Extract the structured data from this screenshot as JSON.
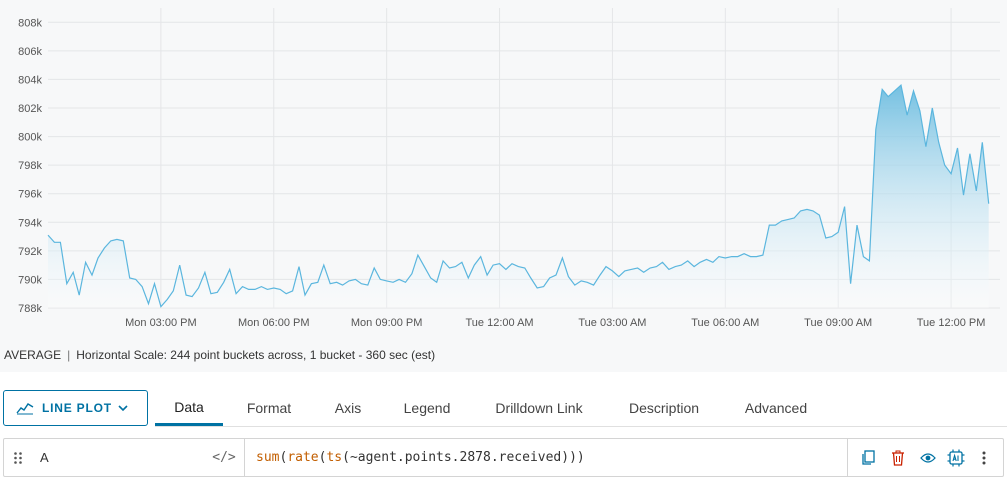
{
  "chart_data": {
    "type": "area",
    "x_labels": [
      "Mon 03:00 PM",
      "Mon 06:00 PM",
      "Mon 09:00 PM",
      "Tue 12:00 AM",
      "Tue 03:00 AM",
      "Tue 06:00 AM",
      "Tue 09:00 AM",
      "Tue 12:00 PM"
    ],
    "y_ticks": [
      "788k",
      "790k",
      "792k",
      "794k",
      "796k",
      "798k",
      "800k",
      "802k",
      "804k",
      "806k",
      "808k"
    ],
    "ylim": [
      788000,
      809000
    ],
    "x_range_hours": [
      0,
      25.3
    ],
    "grid": true,
    "line_color": "#5bb6de",
    "fill_color_top": "#6dbde0",
    "fill_color_bottom": "#ffffff",
    "series": [
      {
        "values": [
          [
            0.0,
            793100
          ],
          [
            0.17,
            792600
          ],
          [
            0.33,
            792600
          ],
          [
            0.5,
            789700
          ],
          [
            0.67,
            790500
          ],
          [
            0.83,
            788900
          ],
          [
            1.0,
            791200
          ],
          [
            1.17,
            790300
          ],
          [
            1.33,
            791500
          ],
          [
            1.5,
            792200
          ],
          [
            1.67,
            792700
          ],
          [
            1.83,
            792800
          ],
          [
            2.0,
            792700
          ],
          [
            2.17,
            790100
          ],
          [
            2.33,
            790000
          ],
          [
            2.5,
            789500
          ],
          [
            2.67,
            788300
          ],
          [
            2.83,
            789700
          ],
          [
            3.0,
            788100
          ],
          [
            3.17,
            788600
          ],
          [
            3.33,
            789200
          ],
          [
            3.5,
            791000
          ],
          [
            3.67,
            788900
          ],
          [
            3.83,
            788800
          ],
          [
            4.0,
            789400
          ],
          [
            4.17,
            790500
          ],
          [
            4.33,
            789000
          ],
          [
            4.5,
            789100
          ],
          [
            4.67,
            789800
          ],
          [
            4.83,
            790700
          ],
          [
            5.0,
            789000
          ],
          [
            5.17,
            789500
          ],
          [
            5.33,
            789300
          ],
          [
            5.5,
            789300
          ],
          [
            5.67,
            789500
          ],
          [
            5.83,
            789300
          ],
          [
            6.0,
            789400
          ],
          [
            6.17,
            789300
          ],
          [
            6.33,
            789000
          ],
          [
            6.5,
            789200
          ],
          [
            6.67,
            790900
          ],
          [
            6.83,
            788900
          ],
          [
            7.0,
            789700
          ],
          [
            7.17,
            789800
          ],
          [
            7.33,
            791000
          ],
          [
            7.5,
            789700
          ],
          [
            7.67,
            789800
          ],
          [
            7.83,
            789600
          ],
          [
            8.0,
            789900
          ],
          [
            8.17,
            790000
          ],
          [
            8.33,
            789700
          ],
          [
            8.5,
            789600
          ],
          [
            8.67,
            790800
          ],
          [
            8.83,
            790000
          ],
          [
            9.0,
            789900
          ],
          [
            9.17,
            789800
          ],
          [
            9.33,
            790000
          ],
          [
            9.5,
            789800
          ],
          [
            9.67,
            790400
          ],
          [
            9.83,
            791700
          ],
          [
            10.0,
            790900
          ],
          [
            10.17,
            790100
          ],
          [
            10.33,
            789800
          ],
          [
            10.5,
            791300
          ],
          [
            10.67,
            790800
          ],
          [
            10.83,
            790900
          ],
          [
            11.0,
            791200
          ],
          [
            11.17,
            790100
          ],
          [
            11.33,
            791000
          ],
          [
            11.5,
            791600
          ],
          [
            11.67,
            790300
          ],
          [
            11.83,
            791000
          ],
          [
            12.0,
            791100
          ],
          [
            12.17,
            790700
          ],
          [
            12.33,
            791100
          ],
          [
            12.5,
            790900
          ],
          [
            12.67,
            790800
          ],
          [
            12.83,
            790100
          ],
          [
            13.0,
            789400
          ],
          [
            13.17,
            789500
          ],
          [
            13.33,
            790100
          ],
          [
            13.5,
            790300
          ],
          [
            13.67,
            791500
          ],
          [
            13.83,
            790200
          ],
          [
            14.0,
            789600
          ],
          [
            14.17,
            789900
          ],
          [
            14.33,
            789800
          ],
          [
            14.5,
            789600
          ],
          [
            14.67,
            790300
          ],
          [
            14.83,
            790900
          ],
          [
            15.0,
            790600
          ],
          [
            15.17,
            790200
          ],
          [
            15.33,
            790600
          ],
          [
            15.5,
            790700
          ],
          [
            15.67,
            790800
          ],
          [
            15.83,
            790500
          ],
          [
            16.0,
            790800
          ],
          [
            16.17,
            790900
          ],
          [
            16.33,
            791200
          ],
          [
            16.5,
            790700
          ],
          [
            16.67,
            790900
          ],
          [
            16.83,
            791000
          ],
          [
            17.0,
            791300
          ],
          [
            17.17,
            790900
          ],
          [
            17.33,
            791200
          ],
          [
            17.5,
            791400
          ],
          [
            17.67,
            791200
          ],
          [
            17.83,
            791600
          ],
          [
            18.0,
            791500
          ],
          [
            18.17,
            791600
          ],
          [
            18.33,
            791600
          ],
          [
            18.5,
            791800
          ],
          [
            18.67,
            791600
          ],
          [
            18.83,
            791600
          ],
          [
            19.0,
            791700
          ],
          [
            19.17,
            793800
          ],
          [
            19.33,
            793800
          ],
          [
            19.5,
            794100
          ],
          [
            19.67,
            794200
          ],
          [
            19.83,
            794300
          ],
          [
            20.0,
            794800
          ],
          [
            20.17,
            794900
          ],
          [
            20.33,
            794800
          ],
          [
            20.5,
            794500
          ],
          [
            20.67,
            792900
          ],
          [
            20.83,
            793000
          ],
          [
            21.0,
            793300
          ],
          [
            21.17,
            795100
          ],
          [
            21.33,
            789700
          ],
          [
            21.5,
            793800
          ],
          [
            21.67,
            791600
          ],
          [
            21.83,
            791300
          ],
          [
            22.0,
            800500
          ],
          [
            22.17,
            803300
          ],
          [
            22.33,
            802800
          ],
          [
            22.5,
            803200
          ],
          [
            22.67,
            803600
          ],
          [
            22.83,
            801500
          ],
          [
            23.0,
            803200
          ],
          [
            23.17,
            801800
          ],
          [
            23.33,
            799300
          ],
          [
            23.5,
            802000
          ],
          [
            23.67,
            799600
          ],
          [
            23.83,
            798000
          ],
          [
            24.0,
            797400
          ],
          [
            24.17,
            799200
          ],
          [
            24.33,
            795900
          ],
          [
            24.5,
            798800
          ],
          [
            24.67,
            796200
          ],
          [
            24.83,
            799600
          ],
          [
            25.0,
            795300
          ]
        ]
      }
    ]
  },
  "summary": {
    "aggregation": "AVERAGE",
    "scale_text": "Horizontal Scale: 244 point buckets across, 1 bucket - 360 sec (est)"
  },
  "toolbar": {
    "plot_type_label": "LINE PLOT",
    "tabs": [
      "Data",
      "Format",
      "Axis",
      "Legend",
      "Drilldown Link",
      "Description",
      "Advanced"
    ],
    "active_tab": "Data"
  },
  "query": {
    "label": "A",
    "code_toggle": "</>",
    "fn1": "sum",
    "fn2": "rate",
    "fn3": "ts",
    "arg": "~agent.points.2878.received",
    "open": "(",
    "close": ")))"
  },
  "icons": {
    "primary": "#0072a3",
    "danger": "#c92100"
  }
}
